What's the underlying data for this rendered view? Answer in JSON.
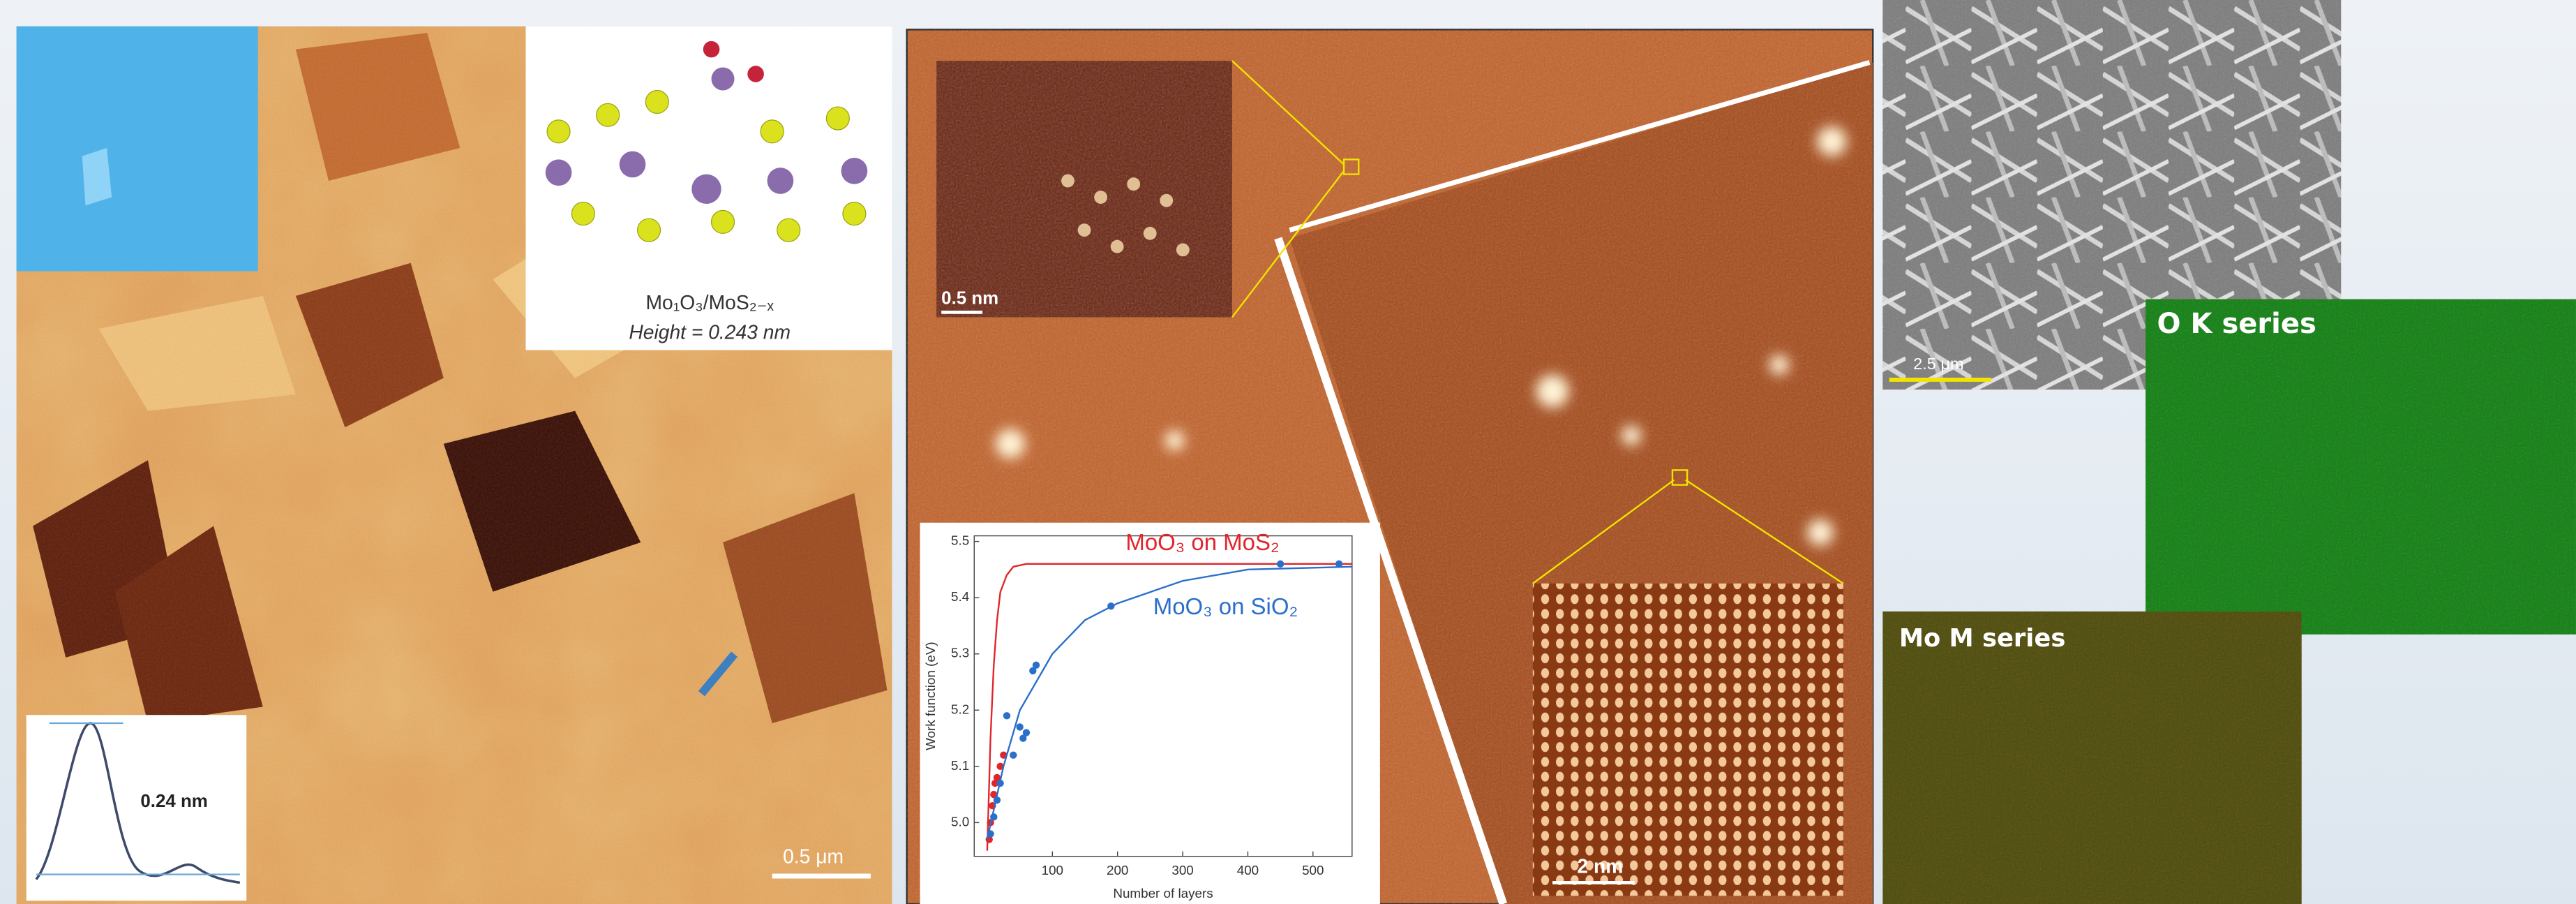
{
  "panels": {
    "left": {
      "inset_formula": "Mo₁O₃/MoS₂₋ₓ",
      "inset_height": "Height = 0.243 nm",
      "profile_label": "0.24 nm",
      "scale_bar": "0.5 μm"
    },
    "middle": {
      "inset_scale_bar": "0.5 nm",
      "scale_bar": "2 nm"
    },
    "right": {
      "sem_scale_bar": "2.5 μm",
      "o_map_title": "O K series",
      "mo_map_title": "Mo M series"
    }
  },
  "chart_data": {
    "type": "scatter",
    "x_label": "Number of layers",
    "y_label": "Work function (eV)",
    "xlim": [
      -20,
      560
    ],
    "ylim": [
      4.94,
      5.51
    ],
    "xticks": [
      100,
      200,
      300,
      400,
      500
    ],
    "yticks": [
      {
        "value": 5,
        "label": "5.0"
      },
      5.1,
      5.2,
      5.3,
      5.4,
      5.5
    ],
    "series": [
      {
        "name": "MoO₃ on MoS₂",
        "color": "#e0252b",
        "x": [
          3,
          5,
          8,
          10,
          12,
          15,
          20,
          25
        ],
        "values": [
          4.97,
          5.0,
          5.03,
          5.05,
          5.07,
          5.08,
          5.1,
          5.12
        ],
        "fit_x": [
          0,
          5,
          10,
          15,
          20,
          30,
          40,
          60,
          100,
          560
        ],
        "fit_values": [
          4.95,
          5.15,
          5.28,
          5.36,
          5.41,
          5.44,
          5.455,
          5.46,
          5.46,
          5.46
        ]
      },
      {
        "name": "MoO₃ on SiO₂",
        "color": "#2a6fc9",
        "x": [
          5,
          10,
          15,
          20,
          30,
          40,
          50,
          55,
          60,
          70,
          75,
          190,
          450,
          540
        ],
        "values": [
          4.98,
          5.01,
          5.04,
          5.07,
          5.19,
          5.12,
          5.17,
          5.15,
          5.16,
          5.27,
          5.28,
          5.385,
          5.46,
          5.46
        ],
        "fit_x": [
          0,
          25,
          50,
          100,
          150,
          200,
          300,
          400,
          560
        ],
        "fit_values": [
          4.97,
          5.1,
          5.2,
          5.3,
          5.36,
          5.39,
          5.43,
          5.45,
          5.455
        ]
      }
    ]
  }
}
